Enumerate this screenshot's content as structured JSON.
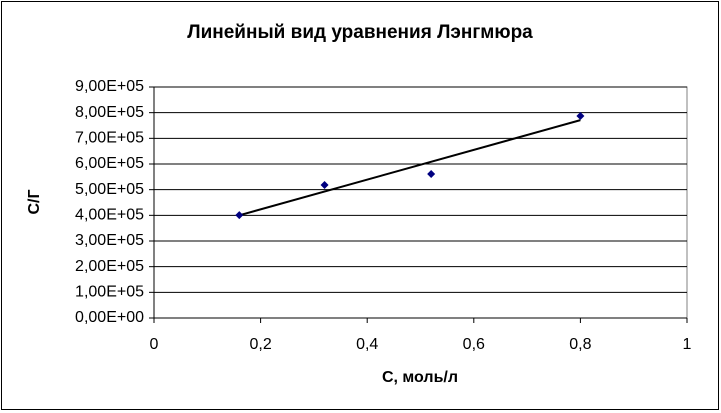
{
  "chart_data": {
    "type": "scatter",
    "title": "Линейный вид уравнения Лэнгмюра",
    "x_label": "С, моль/л",
    "y_label": "С/Г",
    "series": [
      {
        "color": "#000080",
        "x": [
          0.16,
          0.32,
          0.52,
          0.8
        ],
        "values": [
          401000,
          518000,
          561000,
          787000
        ]
      }
    ],
    "trendline": {
      "color": "#000000",
      "x": [
        0.16,
        0.8
      ],
      "values": [
        400000,
        771000
      ]
    },
    "xlim": [
      0,
      1
    ],
    "xticks": [
      0,
      {
        "value": 0.2,
        "label": "0,2"
      },
      {
        "value": 0.4,
        "label": "0,4"
      },
      {
        "value": 0.6,
        "label": "0,6"
      },
      {
        "value": 0.8,
        "label": "0,8"
      },
      1
    ],
    "ylim": [
      0,
      900000
    ],
    "yticks": [
      {
        "value": 0,
        "label": "0,00E+00"
      },
      {
        "value": 100000,
        "label": "1,00E+05"
      },
      {
        "value": 200000,
        "label": "2,00E+05"
      },
      {
        "value": 300000,
        "label": "3,00E+05"
      },
      {
        "value": 400000,
        "label": "4,00E+05"
      },
      {
        "value": 500000,
        "label": "5,00E+05"
      },
      {
        "value": 600000,
        "label": "6,00E+05"
      },
      {
        "value": 700000,
        "label": "7,00E+05"
      },
      {
        "value": 800000,
        "label": "8,00E+05"
      },
      {
        "value": 900000,
        "label": "9,00E+05"
      }
    ],
    "grid": true
  }
}
